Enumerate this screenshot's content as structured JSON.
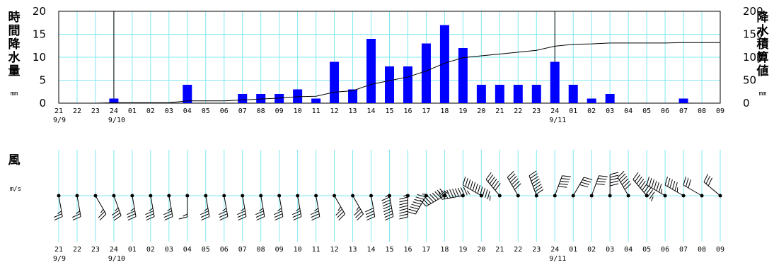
{
  "chart_data": [
    {
      "type": "bar",
      "ylabel": "時間降水量",
      "ylabel_unit": "mm",
      "y2label": "降水積算値",
      "y2label_unit": "mm",
      "ylim": [
        0,
        20
      ],
      "y2lim": [
        0,
        200
      ],
      "yticks": [
        "0",
        "5",
        "10",
        "15",
        "20"
      ],
      "y2ticks": [
        "0",
        "50",
        "100",
        "150",
        "200"
      ],
      "grid": true,
      "categories": [
        "21",
        "22",
        "23",
        "24",
        "01",
        "02",
        "03",
        "04",
        "05",
        "06",
        "07",
        "08",
        "09",
        "10",
        "11",
        "12",
        "13",
        "14",
        "15",
        "16",
        "17",
        "18",
        "19",
        "20",
        "21",
        "22",
        "23",
        "24",
        "01",
        "02",
        "03",
        "04",
        "05",
        "06",
        "07",
        "08",
        "09"
      ],
      "date_labels": [
        {
          "index": 0,
          "text": "9/9"
        },
        {
          "index": 3,
          "text": "9/10"
        },
        {
          "index": 27,
          "text": "9/11"
        }
      ],
      "day_boundaries": [
        3,
        27
      ],
      "series": [
        {
          "values": [
            0,
            0,
            0,
            1,
            0,
            0,
            0,
            4,
            0,
            0,
            2,
            2,
            2,
            3,
            1,
            9,
            3,
            14,
            8,
            8,
            13,
            17,
            12,
            4,
            4,
            4,
            4,
            9,
            4,
            1,
            2,
            0,
            0,
            0,
            1,
            0,
            0
          ],
          "color": "#0000ff"
        },
        {
          "values": [
            0,
            0,
            0,
            1,
            1,
            1,
            1,
            5,
            5,
            5,
            7,
            9,
            11,
            14,
            15,
            24,
            27,
            41,
            49,
            57,
            70,
            87,
            99,
            103,
            107,
            111,
            115,
            124,
            128,
            129,
            131,
            131,
            131,
            131,
            132,
            132,
            132
          ],
          "color": "#000000"
        }
      ]
    },
    {
      "type": "wind-barb",
      "ylabel": "風",
      "ylabel_unit": "m/s",
      "categories": [
        "21",
        "22",
        "23",
        "24",
        "01",
        "02",
        "03",
        "04",
        "05",
        "06",
        "07",
        "08",
        "09",
        "10",
        "11",
        "12",
        "13",
        "14",
        "15",
        "16",
        "17",
        "18",
        "19",
        "20",
        "21",
        "22",
        "23",
        "24",
        "01",
        "02",
        "03",
        "04",
        "05",
        "06",
        "07",
        "08",
        "09"
      ],
      "date_labels": [
        {
          "index": 0,
          "text": "9/9"
        },
        {
          "index": 3,
          "text": "9/10"
        },
        {
          "index": 27,
          "text": "9/11"
        }
      ],
      "series": [
        {
          "name": "direction_deg",
          "values": [
            170,
            170,
            150,
            160,
            170,
            170,
            170,
            180,
            170,
            170,
            170,
            170,
            170,
            170,
            170,
            150,
            150,
            170,
            170,
            180,
            210,
            240,
            260,
            300,
            320,
            330,
            340,
            20,
            30,
            20,
            0,
            330,
            320,
            300,
            300,
            300,
            310
          ]
        },
        {
          "name": "speed_m_s",
          "values": [
            5,
            5,
            5,
            7,
            7,
            7,
            7,
            3,
            7,
            7,
            7,
            7,
            7,
            7,
            7,
            7,
            7,
            8,
            17,
            17,
            17,
            19,
            21,
            23,
            12,
            12,
            16,
            10,
            8,
            8,
            10,
            12,
            21,
            13,
            11,
            6,
            6
          ]
        }
      ]
    }
  ]
}
